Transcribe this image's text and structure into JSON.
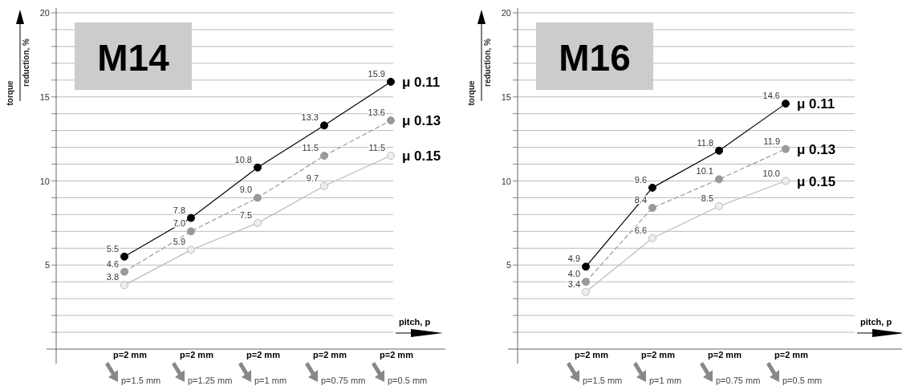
{
  "chart_data": [
    {
      "type": "line",
      "title": "M14",
      "ylabel": "torque\nreduction, %",
      "xlabel": "pitch, p",
      "categories": [
        "p=2 mm\np=1.5 mm",
        "p=2 mm\np=1.25 mm",
        "p=2 mm\np=1 mm",
        "p=2 mm\np=0.75 mm",
        "p=2 mm\np=0.5 mm"
      ],
      "series": [
        {
          "name": "μ 0.11",
          "color": "#000000",
          "line_style": "solid",
          "values": [
            5.5,
            7.8,
            10.8,
            13.3,
            15.9
          ],
          "value_labels": [
            "5.5",
            "7.8",
            "10.8",
            "13.3",
            "15.9"
          ]
        },
        {
          "name": "μ 0.13",
          "color": "#999999",
          "line_style": "dashed",
          "values": [
            4.6,
            7.0,
            9.0,
            11.5,
            13.6
          ],
          "value_labels": [
            "4.6",
            "7.0",
            "9.0",
            "11.5",
            "13.6"
          ]
        },
        {
          "name": "μ 0.15",
          "color": "#bbbbbb",
          "line_style": "solid",
          "values": [
            3.8,
            5.9,
            7.5,
            9.7,
            11.5
          ],
          "value_labels": [
            "3.8",
            "5.9",
            "7.5",
            "9.7",
            "11.5"
          ]
        }
      ],
      "ylim": [
        0,
        20
      ],
      "yticks": [
        {
          "value": 1,
          "label": null
        },
        {
          "value": 2,
          "label": null
        },
        {
          "value": 3,
          "label": null
        },
        {
          "value": 4,
          "label": null
        },
        5,
        {
          "value": 6,
          "label": null
        },
        {
          "value": 7,
          "label": null
        },
        {
          "value": 8,
          "label": null
        },
        {
          "value": 9,
          "label": null
        },
        10,
        {
          "value": 11,
          "label": null
        },
        {
          "value": 12,
          "label": null
        },
        {
          "value": 13,
          "label": null
        },
        {
          "value": 14,
          "label": null
        },
        15,
        {
          "value": 16,
          "label": null
        },
        {
          "value": 17,
          "label": null
        },
        {
          "value": 18,
          "label": null
        },
        {
          "value": 19,
          "label": null
        },
        20
      ],
      "grid": "y",
      "marker": "circle"
    },
    {
      "type": "line",
      "title": "M16",
      "ylabel": "torque\nreduction, %",
      "xlabel": "pitch, p",
      "categories": [
        "p=2 mm\np=1.5 mm",
        "p=2 mm\np=1 mm",
        "p=2 mm\np=0.75 mm",
        "p=2 mm\np=0.5 mm"
      ],
      "series": [
        {
          "name": "μ 0.11",
          "color": "#000000",
          "line_style": "solid",
          "values": [
            4.9,
            9.6,
            11.8,
            14.6
          ],
          "value_labels": [
            "4.9",
            "9.6",
            "11.8",
            "14.6"
          ]
        },
        {
          "name": "μ 0.13",
          "color": "#999999",
          "line_style": "dashed",
          "values": [
            4.0,
            8.4,
            10.1,
            11.9
          ],
          "value_labels": [
            "4.0",
            "8.4",
            "10.1",
            "11.9"
          ]
        },
        {
          "name": "μ 0.15",
          "color": "#bbbbbb",
          "line_style": "solid",
          "values": [
            3.4,
            6.6,
            8.5,
            10.0
          ],
          "value_labels": [
            "3.4",
            "6.6",
            "8.5",
            "10.0"
          ]
        }
      ],
      "ylim": [
        0,
        20
      ],
      "yticks": [
        {
          "value": 1,
          "label": null
        },
        {
          "value": 2,
          "label": null
        },
        {
          "value": 3,
          "label": null
        },
        {
          "value": 4,
          "label": null
        },
        5,
        {
          "value": 6,
          "label": null
        },
        {
          "value": 7,
          "label": null
        },
        {
          "value": 8,
          "label": null
        },
        {
          "value": 9,
          "label": null
        },
        10,
        {
          "value": 11,
          "label": null
        },
        {
          "value": 12,
          "label": null
        },
        {
          "value": 13,
          "label": null
        },
        {
          "value": 14,
          "label": null
        },
        15,
        {
          "value": 16,
          "label": null
        },
        {
          "value": 17,
          "label": null
        },
        {
          "value": 18,
          "label": null
        },
        {
          "value": 19,
          "label": null
        },
        20
      ],
      "grid": "y",
      "marker": "circle"
    }
  ]
}
